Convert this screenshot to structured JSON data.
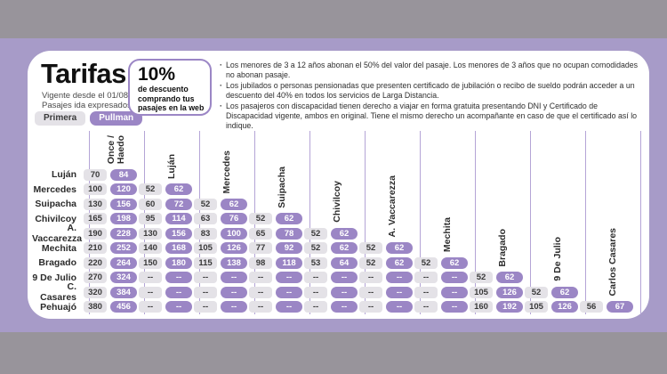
{
  "header": {
    "title": "Tarifas",
    "valid_from": "Vigente desde el 01/08/22",
    "fare_unit": "Pasajes ida expresados en $"
  },
  "legend": {
    "primera": "Primera",
    "pullman": "Pullman"
  },
  "promo": {
    "headline": "10%",
    "text": "de descuento\ncomprando tus\npasajes en la web"
  },
  "notes": [
    "Los menores de 3 a 12 años abonan el 50% del valor del pasaje. Los menores de 3 años que no ocupan comodidades no abonan pasaje.",
    "Los jubilados o personas pensionadas que presenten certificado de jubilación o recibo de sueldo podrán acceder a un descuento del 40% en todos los servicios de Larga Distancia.",
    "Los pasajeros con discapacidad tienen derecho a viajar en forma gratuita presentando DNI y Certificado de Discapacidad vigente, ambos en original. Tiene el mismo derecho un acompañante en caso de que el certificado así lo indique."
  ],
  "colors": {
    "frame_gray": "#98949B",
    "background_purple": "#A79BC8",
    "accent_purple": "#9B86C5",
    "pill_gray": "#E4E2E7",
    "divider_purple": "#B4A4D6"
  },
  "table": {
    "fare_classes": [
      "Primera",
      "Pullman"
    ],
    "columns": [
      "Once /\nHaedo",
      "Luján",
      "Mercedes",
      "Suipacha",
      "Chivilcoy",
      "A. Vaccarezza",
      "Mechita",
      "Bragado",
      "9 De Julio",
      "Carlos Casares"
    ],
    "rows": [
      {
        "label": "Luján",
        "fares": [
          [
            "70",
            "84"
          ],
          null,
          null,
          null,
          null,
          null,
          null,
          null,
          null,
          null
        ]
      },
      {
        "label": "Mercedes",
        "fares": [
          [
            "100",
            "120"
          ],
          [
            "52",
            "62"
          ],
          null,
          null,
          null,
          null,
          null,
          null,
          null,
          null
        ]
      },
      {
        "label": "Suipacha",
        "fares": [
          [
            "130",
            "156"
          ],
          [
            "60",
            "72"
          ],
          [
            "52",
            "62"
          ],
          null,
          null,
          null,
          null,
          null,
          null,
          null
        ]
      },
      {
        "label": "Chivilcoy",
        "fares": [
          [
            "165",
            "198"
          ],
          [
            "95",
            "114"
          ],
          [
            "63",
            "76"
          ],
          [
            "52",
            "62"
          ],
          null,
          null,
          null,
          null,
          null,
          null
        ]
      },
      {
        "label": "A. Vaccarezza",
        "fares": [
          [
            "190",
            "228"
          ],
          [
            "130",
            "156"
          ],
          [
            "83",
            "100"
          ],
          [
            "65",
            "78"
          ],
          [
            "52",
            "62"
          ],
          null,
          null,
          null,
          null,
          null
        ]
      },
      {
        "label": "Mechita",
        "fares": [
          [
            "210",
            "252"
          ],
          [
            "140",
            "168"
          ],
          [
            "105",
            "126"
          ],
          [
            "77",
            "92"
          ],
          [
            "52",
            "62"
          ],
          [
            "52",
            "62"
          ],
          null,
          null,
          null,
          null
        ]
      },
      {
        "label": "Bragado",
        "fares": [
          [
            "220",
            "264"
          ],
          [
            "150",
            "180"
          ],
          [
            "115",
            "138"
          ],
          [
            "98",
            "118"
          ],
          [
            "53",
            "64"
          ],
          [
            "52",
            "62"
          ],
          [
            "52",
            "62"
          ],
          null,
          null,
          null
        ]
      },
      {
        "label": "9 De Julio",
        "fares": [
          [
            "270",
            "324"
          ],
          [
            "--",
            "--"
          ],
          [
            "--",
            "--"
          ],
          [
            "--",
            "--"
          ],
          [
            "--",
            "--"
          ],
          [
            "--",
            "--"
          ],
          [
            "--",
            "--"
          ],
          [
            "52",
            "62"
          ],
          null,
          null
        ]
      },
      {
        "label": "C. Casares",
        "fares": [
          [
            "320",
            "384"
          ],
          [
            "--",
            "--"
          ],
          [
            "--",
            "--"
          ],
          [
            "--",
            "--"
          ],
          [
            "--",
            "--"
          ],
          [
            "--",
            "--"
          ],
          [
            "--",
            "--"
          ],
          [
            "105",
            "126"
          ],
          [
            "52",
            "62"
          ],
          null
        ]
      },
      {
        "label": "Pehuajó",
        "fares": [
          [
            "380",
            "456"
          ],
          [
            "--",
            "--"
          ],
          [
            "--",
            "--"
          ],
          [
            "--",
            "--"
          ],
          [
            "--",
            "--"
          ],
          [
            "--",
            "--"
          ],
          [
            "--",
            "--"
          ],
          [
            "160",
            "192"
          ],
          [
            "105",
            "126"
          ],
          [
            "56",
            "67"
          ]
        ]
      }
    ]
  }
}
